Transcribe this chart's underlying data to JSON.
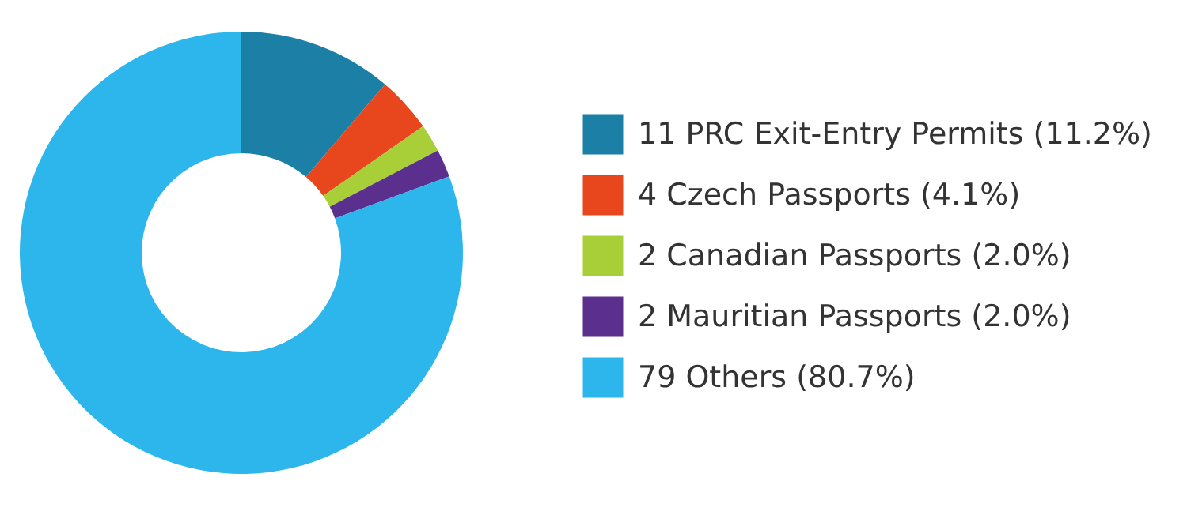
{
  "chart_data": {
    "type": "donut",
    "categories": [
      "11 PRC Exit-Entry Permits (11.2%)",
      "4 Czech Passports (4.1%)",
      "2 Canadian Passports (2.0%)",
      "2 Mauritian Passports (2.0%)",
      "79 Others (80.7%)"
    ],
    "values": [
      11,
      4,
      2,
      2,
      79
    ],
    "colors": [
      "#1b7fa6",
      "#e8461c",
      "#a8cf38",
      "#5b2f8e",
      "#2cb6ec"
    ],
    "legend": "right"
  }
}
